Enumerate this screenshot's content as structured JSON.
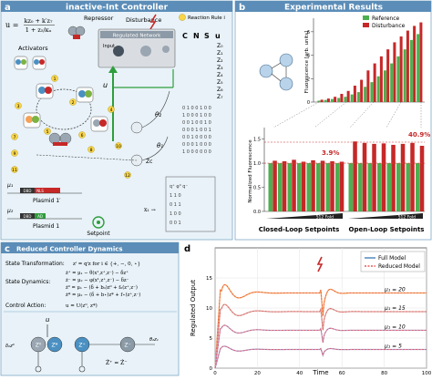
{
  "panel_a": {
    "letter": "a",
    "title": "inactive-Int Controller",
    "u_lhs": "u =",
    "u_num": "kz₀ + k′z₇",
    "u_den": "1 + z₅/κᵤ",
    "repressor": "Repressor",
    "disturbance": "Disturbance",
    "activators": "Activators",
    "input": "Input",
    "regulated_network": "Regulated Network",
    "reaction_rule": "Reaction Rule i",
    "u_label": "u",
    "theta1": "θ₁",
    "theta2": "θ₂",
    "zc": "Zc",
    "plasmid1": "Plasmid 1",
    "plasmid1p": "Plasmid 1′",
    "mu1": "μ₁",
    "mu2": "μ₂",
    "setpoint": "Setpoint",
    "dbd": "DBD",
    "ad": "AD",
    "nls": "NLS",
    "cnsu": [
      "C",
      "N",
      "S",
      "u"
    ],
    "species_a": [
      "Z₀",
      "Z₁",
      "Z₂",
      "Z₃",
      "Z₄",
      "Z₅",
      "Z₆",
      "Z₇"
    ],
    "x_eq": "x₁ →",
    "circled": [
      "1",
      "2",
      "3",
      "4",
      "5",
      "6",
      "7",
      "8",
      "9",
      "10",
      "11",
      "12"
    ]
  },
  "panel_b": {
    "letter": "b",
    "title": "Experimental Results",
    "legend": [
      "Reference",
      "Disturbance"
    ],
    "colors": {
      "reference": "#4caf50",
      "disturbance": "#c62828",
      "ideal": "#e53935"
    },
    "top_ylabel": "Fluorescence [arb. units]",
    "top_ticks": [
      "0",
      "2",
      "4",
      "6"
    ],
    "bottom_ylabel": "Normalized Fluorescence",
    "bottom_ticks": [
      "0.0",
      "0.5",
      "1.0",
      "1.5"
    ],
    "annot_closed": "3.9%",
    "annot_open": "40.9%",
    "fold": "512 Fold",
    "closed_label": "Closed-Loop Setpoints",
    "open_label": "Open-Loop Setpoints"
  },
  "panel_c": {
    "letter": "c",
    "title": "Reduced Controller Dynamics",
    "state_transformation": "State Transformation:",
    "state_dynamics": "State Dynamics:",
    "control_action": "Control Action:",
    "eq_transform": "zⁱ = qⁱz  for i ∈ {+, −, 0, ⋆}",
    "eq_dyn": [
      "ż⁺ = μ₁ − θ(x¹,z⁺,z⁻) − δz⁺",
      "ż⁻ = μ₂ − φ(x¹,z⁺,z⁻) − δz⁻",
      "ż⁰ = μ₁ − (δ + b₀)z⁰ + f₀(z⁺,z⁻)",
      "ż* = μ₂ − (δ + b⋆)z* + f⋆(z⁺,z⁻)"
    ],
    "eq_ctrl": "u = U(z⁰, z*)",
    "node_z0": "Z⁰",
    "node_zstar": "Z*",
    "node_zp": "Z⁺",
    "node_zm": "Z⁻",
    "u": "u",
    "x_rate": "θ₂z₁",
    "delta": "δ₀z⁰",
    "dyn_eq": "Ż⁺ = Ż⁻"
  },
  "panel_d": {
    "letter": "d",
    "ylabel": "Regulated Output",
    "xlabel": "Time",
    "xticks": [
      "0",
      "20",
      "40",
      "60",
      "80",
      "100"
    ],
    "yticks": [
      "0",
      "5",
      "10",
      "15"
    ],
    "legend": [
      "Full Model",
      "Reduced Model"
    ],
    "mu_labels": [
      "μ₁ = 20",
      "μ₁ = 15",
      "μ₁ = 10",
      "μ₁ = 5"
    ]
  },
  "chart_data": {
    "type": "line",
    "xlabel": "Time",
    "ylabel": "Regulated Output",
    "xlim": [
      0,
      100
    ],
    "ylim": [
      0,
      20
    ],
    "disturbance_time": 50,
    "series": [
      {
        "name": "μ₁ = 20",
        "setpoint": 12.5,
        "peak": 17.2,
        "dip": 7.8,
        "dist_peak": 15.1,
        "color": "#f4a259"
      },
      {
        "name": "μ₁ = 15",
        "setpoint": 9.4,
        "peak": 13.2,
        "dip": 5.6,
        "dist_peak": 11.4,
        "color": "#d9a5a0"
      },
      {
        "name": "μ₁ = 10",
        "setpoint": 6.3,
        "peak": 8.9,
        "dip": 3.8,
        "dist_peak": 7.7,
        "color": "#c2a0c8"
      },
      {
        "name": "μ₁ = 5",
        "setpoint": 3.1,
        "peak": 4.6,
        "dip": 1.9,
        "dist_peak": 3.9,
        "color": "#b89cc9"
      }
    ],
    "bars_top": {
      "reference": [
        0.12,
        0.18,
        0.26,
        0.35,
        0.45,
        0.65,
        0.85,
        1.3,
        1.7,
        2.2,
        2.7,
        3.3,
        3.9,
        4.5,
        5.3,
        5.8
      ],
      "disturbance": [
        0.2,
        0.3,
        0.45,
        0.7,
        0.95,
        1.4,
        1.9,
        2.7,
        3.3,
        3.9,
        4.5,
        5.1,
        5.6,
        6.1,
        6.5,
        6.8
      ]
    },
    "bars_bottom": {
      "reference": [
        1.0,
        1.0,
        1.0,
        1.0,
        1.0,
        1.0,
        1.0,
        1.0,
        1.0,
        1.0,
        1.0,
        1.0,
        1.0,
        1.0,
        1.0,
        1.0
      ],
      "disturbance": [
        1.05,
        1.04,
        1.07,
        1.03,
        1.06,
        1.05,
        1.04,
        1.03,
        1.45,
        1.42,
        1.4,
        1.41,
        1.38,
        1.4,
        1.42,
        1.36
      ]
    }
  }
}
